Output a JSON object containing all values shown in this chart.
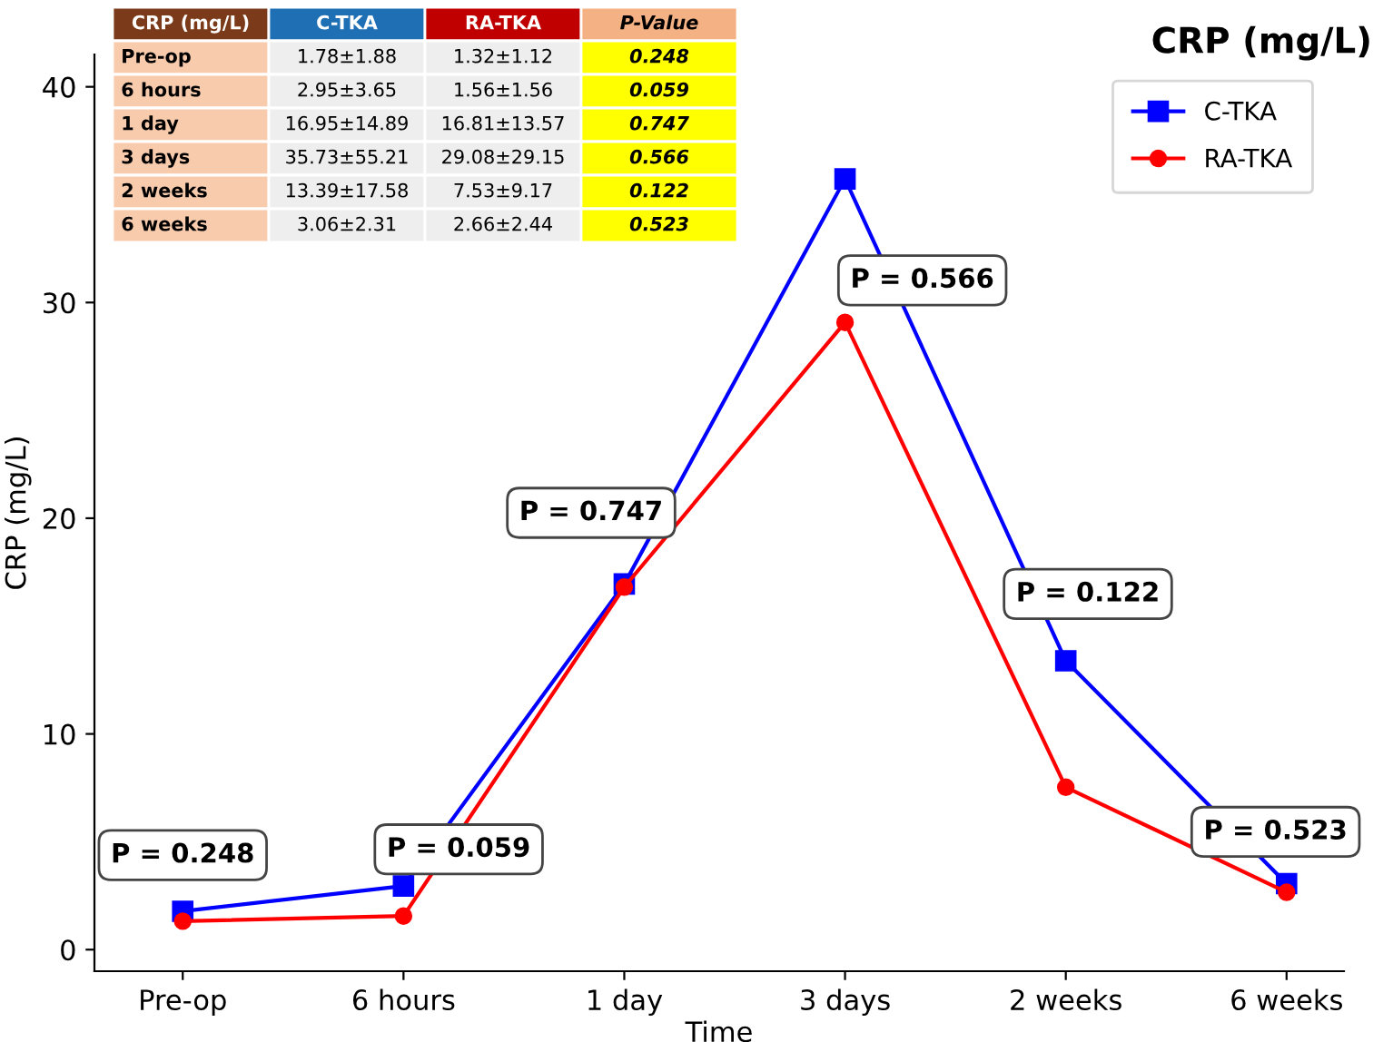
{
  "chart_data": {
    "type": "line",
    "title": "CRP (mg/L)",
    "xlabel": "Time",
    "ylabel": "CRP (mg/L)",
    "categories": [
      "Pre-op",
      "6 hours",
      "1 day",
      "3 days",
      "2 weeks",
      "6 weeks"
    ],
    "series": [
      {
        "name": "C-TKA",
        "color": "#0000ff",
        "marker": "square",
        "values": [
          1.78,
          2.95,
          16.95,
          35.73,
          13.39,
          3.06
        ]
      },
      {
        "name": "RA-TKA",
        "color": "#ff0000",
        "marker": "circle",
        "values": [
          1.32,
          1.56,
          16.81,
          29.08,
          7.53,
          2.66
        ]
      }
    ],
    "ylim": [
      -1,
      41.5
    ],
    "yticks": [
      0,
      10,
      20,
      30,
      40
    ],
    "grid": false,
    "legend": "top right",
    "line_style": "solid",
    "annotations": [
      "P = 0.248",
      "P = 0.059",
      "P = 0.747",
      "P = 0.566",
      "P = 0.122",
      "P = 0.523",
      "CRP (mg/L)",
      "C-TKA",
      "RA-TKA",
      "P-Value",
      "Pre-op",
      "1.78±1.88",
      "1.32±1.12",
      "0.248",
      "6 hours",
      "2.95±3.65",
      "1.56±1.56",
      "0.059",
      "1 day",
      "16.95±14.89",
      "16.81±13.57",
      "0.747",
      "3 days",
      "35.73±55.21",
      "29.08±29.15",
      "0.566",
      "2 weeks",
      "13.39±17.58",
      "7.53±9.17",
      "0.122",
      "6 weeks",
      "3.06±2.31",
      "2.66±2.44",
      "0.523"
    ]
  }
}
